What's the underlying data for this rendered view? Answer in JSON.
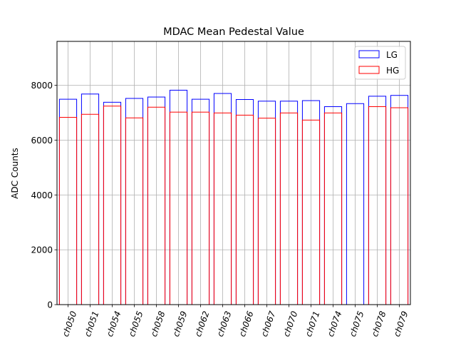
{
  "chart_data": {
    "type": "bar",
    "title": "MDAC Mean Pedestal Value",
    "xlabel": "",
    "ylabel": "ADC Counts",
    "ylim": [
      0,
      9600
    ],
    "yticks": [
      0,
      2000,
      4000,
      6000,
      8000
    ],
    "grid": true,
    "legend_position": "top-right",
    "categories": [
      "ch050",
      "ch051",
      "ch054",
      "ch055",
      "ch058",
      "ch059",
      "ch062",
      "ch063",
      "ch066",
      "ch067",
      "ch070",
      "ch071",
      "ch074",
      "ch075",
      "ch078",
      "ch079"
    ],
    "series": [
      {
        "name": "LG",
        "color": "#0000ff",
        "values": [
          7490,
          7680,
          7380,
          7520,
          7570,
          7820,
          7490,
          7700,
          7480,
          7420,
          7420,
          7440,
          7220,
          7330,
          7600,
          7630
        ]
      },
      {
        "name": "HG",
        "color": "#ff0000",
        "values": [
          6830,
          6940,
          7240,
          6810,
          7200,
          7020,
          7020,
          6990,
          6910,
          6800,
          6990,
          6730,
          6990,
          null,
          7220,
          7180
        ]
      }
    ]
  }
}
